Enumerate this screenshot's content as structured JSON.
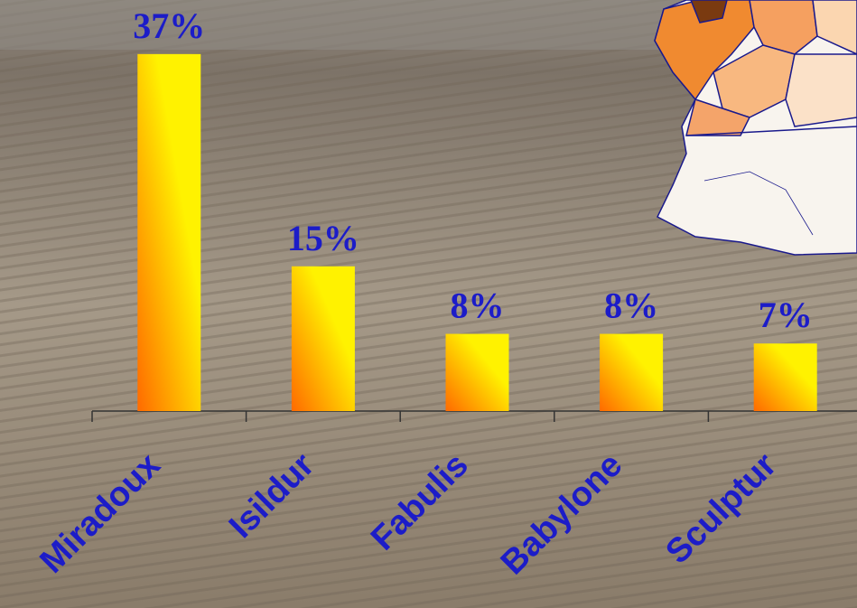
{
  "chart_data": {
    "type": "bar",
    "categories": [
      "Miradoux",
      "Isildur",
      "Fabulis",
      "Babylone",
      "Sculptur"
    ],
    "values": [
      37,
      15,
      8,
      8,
      7
    ],
    "value_labels": [
      "37%",
      "15%",
      "8%",
      "8%",
      "7%"
    ],
    "color": "#ff9900"
  }
}
